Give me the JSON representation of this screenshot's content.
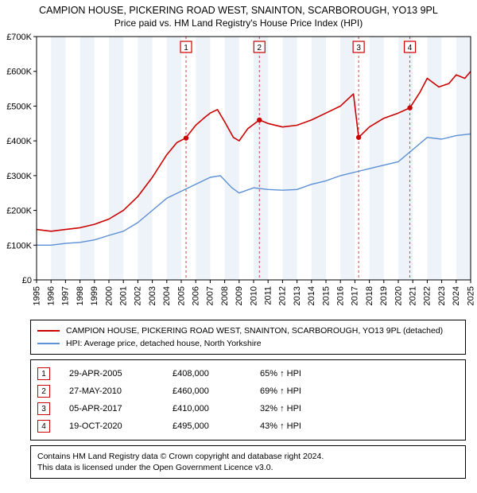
{
  "title_line1": "CAMPION HOUSE, PICKERING ROAD WEST, SNAINTON, SCARBOROUGH, YO13 9PL",
  "title_line2": "Price paid vs. HM Land Registry's House Price Index (HPI)",
  "chart": {
    "type": "line",
    "background_color": "#ffffff",
    "plot_bg_color": "#ffffff",
    "band_color": "#eef3fa",
    "border_color": "#000000",
    "grid_color": "#ffffff",
    "vline_color": "#cc4444",
    "marker_stroke": "#cc0000",
    "ylabel_prefix": "£",
    "ylim": [
      0,
      700
    ],
    "ytick_step": 100,
    "yticks": [
      "£0",
      "£100K",
      "£200K",
      "£300K",
      "£400K",
      "£500K",
      "£600K",
      "£700K"
    ],
    "x_years": [
      1995,
      1996,
      1997,
      1998,
      1999,
      2000,
      2001,
      2002,
      2003,
      2004,
      2005,
      2006,
      2007,
      2008,
      2009,
      2010,
      2011,
      2012,
      2013,
      2014,
      2015,
      2016,
      2017,
      2018,
      2019,
      2020,
      2021,
      2022,
      2023,
      2024,
      2025
    ],
    "series": [
      {
        "name": "property",
        "color": "#cc0000",
        "width": 1.6,
        "label": "CAMPION HOUSE, PICKERING ROAD WEST, SNAINTON, SCARBOROUGH, YO13 9PL (detached)",
        "points": [
          [
            1995,
            145
          ],
          [
            1996,
            140
          ],
          [
            1997,
            145
          ],
          [
            1998,
            150
          ],
          [
            1999,
            160
          ],
          [
            2000,
            175
          ],
          [
            2001,
            200
          ],
          [
            2002,
            240
          ],
          [
            2003,
            295
          ],
          [
            2004,
            360
          ],
          [
            2004.7,
            395
          ],
          [
            2005.3,
            408
          ],
          [
            2006,
            445
          ],
          [
            2006.7,
            470
          ],
          [
            2007,
            480
          ],
          [
            2007.5,
            490
          ],
          [
            2008,
            455
          ],
          [
            2008.6,
            410
          ],
          [
            2009,
            400
          ],
          [
            2009.6,
            435
          ],
          [
            2010.4,
            460
          ],
          [
            2011,
            450
          ],
          [
            2012,
            440
          ],
          [
            2013,
            445
          ],
          [
            2014,
            460
          ],
          [
            2015,
            480
          ],
          [
            2016,
            500
          ],
          [
            2016.9,
            535
          ],
          [
            2017.26,
            410
          ],
          [
            2018,
            440
          ],
          [
            2019,
            465
          ],
          [
            2020,
            480
          ],
          [
            2020.8,
            495
          ],
          [
            2021.5,
            540
          ],
          [
            2022,
            580
          ],
          [
            2022.8,
            555
          ],
          [
            2023.5,
            565
          ],
          [
            2024,
            590
          ],
          [
            2024.6,
            580
          ],
          [
            2025,
            600
          ]
        ]
      },
      {
        "name": "hpi",
        "color": "#5b8fd6",
        "width": 1.4,
        "label": "HPI: Average price, detached house, North Yorkshire",
        "points": [
          [
            1995,
            100
          ],
          [
            1996,
            100
          ],
          [
            1997,
            105
          ],
          [
            1998,
            108
          ],
          [
            1999,
            115
          ],
          [
            2000,
            128
          ],
          [
            2001,
            140
          ],
          [
            2002,
            165
          ],
          [
            2003,
            200
          ],
          [
            2004,
            235
          ],
          [
            2005,
            255
          ],
          [
            2006,
            275
          ],
          [
            2007,
            295
          ],
          [
            2007.7,
            300
          ],
          [
            2008.5,
            265
          ],
          [
            2009,
            250
          ],
          [
            2010,
            265
          ],
          [
            2011,
            260
          ],
          [
            2012,
            258
          ],
          [
            2013,
            260
          ],
          [
            2014,
            275
          ],
          [
            2015,
            285
          ],
          [
            2016,
            300
          ],
          [
            2017,
            310
          ],
          [
            2018,
            320
          ],
          [
            2019,
            330
          ],
          [
            2020,
            340
          ],
          [
            2021,
            375
          ],
          [
            2022,
            410
          ],
          [
            2023,
            405
          ],
          [
            2024,
            415
          ],
          [
            2025,
            420
          ]
        ]
      }
    ],
    "events": [
      {
        "n": "1",
        "year": 2005.33,
        "y": 408,
        "date": "29-APR-2005",
        "price": "£408,000",
        "pct": "65% ↑ HPI"
      },
      {
        "n": "2",
        "year": 2010.4,
        "y": 460,
        "date": "27-MAY-2010",
        "price": "£460,000",
        "pct": "69% ↑ HPI"
      },
      {
        "n": "3",
        "year": 2017.26,
        "y": 410,
        "date": "05-APR-2017",
        "price": "£410,000",
        "pct": "32% ↑ HPI"
      },
      {
        "n": "4",
        "year": 2020.8,
        "y": 495,
        "date": "19-OCT-2020",
        "price": "£495,000",
        "pct": "43% ↑ HPI"
      }
    ]
  },
  "footer_line1": "Contains HM Land Registry data © Crown copyright and database right 2024.",
  "footer_line2": "This data is licensed under the Open Government Licence v3.0."
}
